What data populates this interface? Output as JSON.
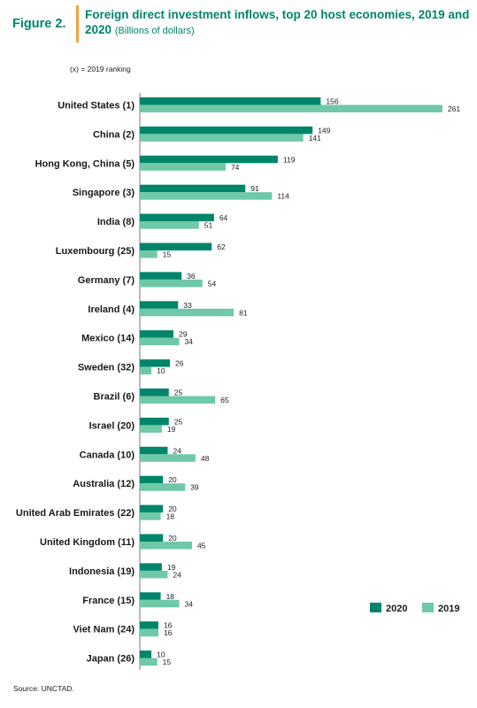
{
  "figure": {
    "label": "Figure 2.",
    "title": "Foreign direct investment inflows, top 20 host economies, 2019 and 2020",
    "unit": "(Billions of dollars)",
    "rank_note": "(x) = 2019  ranking",
    "source": "Source:    UNCTAD."
  },
  "colors": {
    "series_2020": "#00856a",
    "series_2019": "#6fc8a8",
    "title": "#00856a",
    "accent_bar": "#f2a33a"
  },
  "chart_data": {
    "type": "bar",
    "orientation": "horizontal",
    "title": "Foreign direct investment inflows, top 20 host economies, 2019 and 2020",
    "unit": "Billions of dollars",
    "categories": [
      "United States (1)",
      "China (2)",
      "Hong Kong, China (5)",
      "Singapore (3)",
      "India (8)",
      "Luxembourg (25)",
      "Germany (7)",
      "Ireland (4)",
      "Mexico (14)",
      "Sweden (32)",
      "Brazil (6)",
      "Israel (20)",
      "Canada (10)",
      "Australia (12)",
      "United Arab Emirates (22)",
      "United Kingdom (11)",
      "Indonesia (19)",
      "France (15)",
      "Viet Nam (24)",
      "Japan (26)"
    ],
    "series": [
      {
        "name": "2020",
        "values": [
          156,
          149,
          119,
          91,
          64,
          62,
          36,
          33,
          29,
          26,
          25,
          25,
          24,
          20,
          20,
          20,
          19,
          18,
          16,
          10
        ]
      },
      {
        "name": "2019",
        "values": [
          261,
          141,
          74,
          114,
          51,
          15,
          54,
          81,
          34,
          10,
          65,
          19,
          48,
          39,
          18,
          45,
          24,
          34,
          16,
          15
        ]
      }
    ],
    "legend": "right",
    "grid": false
  }
}
